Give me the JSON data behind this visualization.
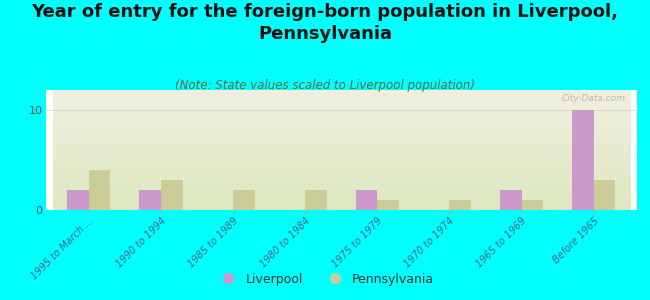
{
  "title": "Year of entry for the foreign-born population in Liverpool,\nPennsylvania",
  "subtitle": "(Note: State values scaled to Liverpool population)",
  "categories": [
    "1995 to March ...",
    "1990 to 1994",
    "1985 to 1989",
    "1980 to 1984",
    "1975 to 1979",
    "1970 to 1974",
    "1965 to 1969",
    "Before 1965"
  ],
  "liverpool_values": [
    2,
    2,
    0,
    0,
    2,
    0,
    2,
    10
  ],
  "pennsylvania_values": [
    4,
    3,
    2,
    2,
    1,
    1,
    1,
    3
  ],
  "liverpool_color": "#cc99cc",
  "pennsylvania_color": "#cccc99",
  "background_color": "#00ffff",
  "plot_bg_top": "#dde8c0",
  "plot_bg_bottom": "#f0f0e0",
  "ylim": [
    0,
    12
  ],
  "yticks": [
    0,
    10
  ],
  "bar_width": 0.3,
  "title_fontsize": 13,
  "subtitle_fontsize": 8.5,
  "watermark": "City-Data.com"
}
